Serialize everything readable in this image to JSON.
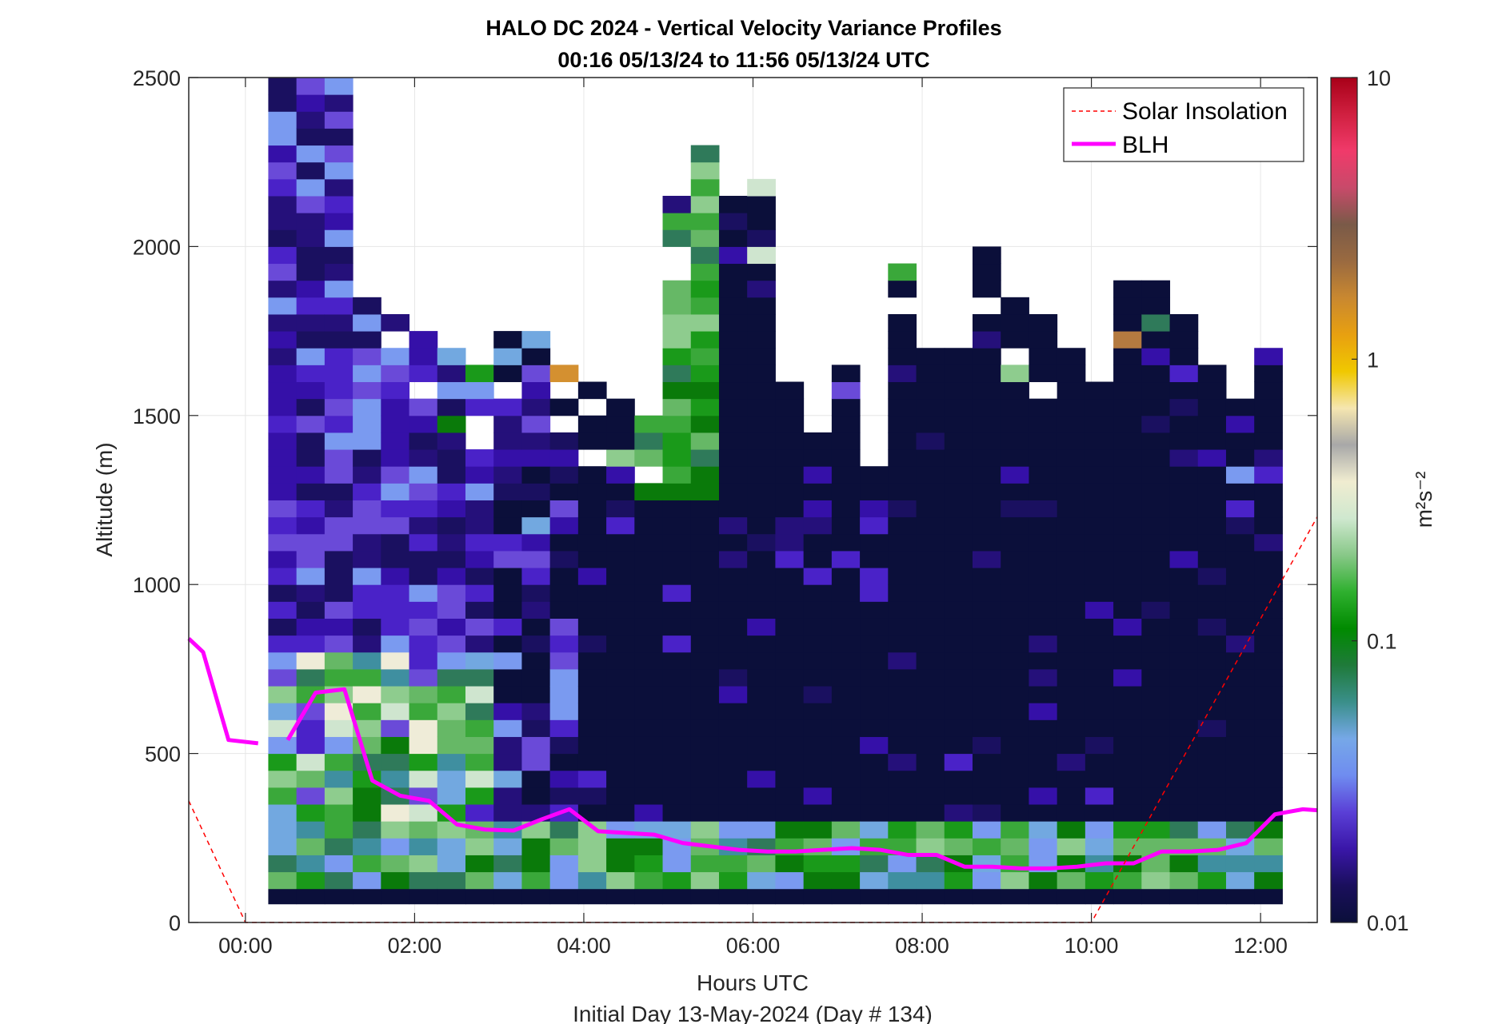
{
  "chart_data": {
    "type": "heatmap",
    "title": "HALO DC 2024 - Vertical Velocity Variance Profiles",
    "subtitle": "00:16 05/13/24 to 11:56 05/13/24  UTC",
    "xlabel": "Hours UTC",
    "xlabel2": "Initial Day 13-May-2024 (Day # 134)",
    "ylabel": "Altitude (m)",
    "colorbar_label": "m²s⁻²",
    "x_ticks": [
      "00:00",
      "02:00",
      "04:00",
      "06:00",
      "08:00",
      "10:00",
      "12:00"
    ],
    "x_tick_hours": [
      0,
      2,
      4,
      6,
      8,
      10,
      12
    ],
    "xlim_hours": [
      -0.67,
      12.67
    ],
    "y_ticks": [
      "0",
      "500",
      "1000",
      "1500",
      "2000",
      "2500"
    ],
    "y_tick_values": [
      0,
      500,
      1000,
      1500,
      2000,
      2500
    ],
    "ylim": [
      0,
      2500
    ],
    "colorbar_ticks": [
      "0.01",
      "0.1",
      "1",
      "10"
    ],
    "colorbar_tick_values": [
      0.01,
      0.1,
      1,
      10
    ],
    "colorbar_scale": "log",
    "colorbar_stops": [
      "#0b0f3a",
      "#1a0f5c",
      "#3a16a8",
      "#5a3fd6",
      "#6f8cf0",
      "#76a8e8",
      "#3a8f8a",
      "#1f7a3a",
      "#008a00",
      "#2fb02f",
      "#88c888",
      "#cfe8cf",
      "#f0ecd0",
      "#a8a8a8",
      "#f5e6b0",
      "#f0c800",
      "#e8a010",
      "#c98830",
      "#9a6a40",
      "#7a5a48",
      "#c84a6a",
      "#f03a6a",
      "#d02040",
      "#a80018"
    ],
    "heatmap_palette": [
      "#0b0f3a",
      "#1a1060",
      "#25107a",
      "#3510a8",
      "#4a22c8",
      "#6a4ad8",
      "#7a9af0",
      "#72a8e0",
      "#3f8fa0",
      "#2f7a5a",
      "#0a7a0a",
      "#1a9a1a",
      "#3aa83a",
      "#66b866",
      "#8ecc8e",
      "#cfe5cf",
      "#efecd8",
      "#f2dc70",
      "#f0c000",
      "#d49030",
      "#b47a40"
    ],
    "grid": true,
    "legend": {
      "placement": "top-right",
      "entries": [
        {
          "name": "Solar Insolation",
          "color": "#ff0000",
          "style": "dashed"
        },
        {
          "name": "BLH",
          "color": "#ff00ff",
          "style": "solid"
        }
      ]
    },
    "series": [
      {
        "name": "BLH",
        "color": "#ff00ff",
        "segments": [
          [
            [
              -0.67,
              840
            ],
            [
              -0.5,
              800
            ],
            [
              -0.2,
              540
            ],
            [
              0.15,
              530
            ]
          ],
          [
            [
              0.5,
              540
            ],
            [
              0.83,
              680
            ],
            [
              1.17,
              690
            ],
            [
              1.5,
              420
            ],
            [
              1.83,
              375
            ],
            [
              2.17,
              360
            ],
            [
              2.5,
              290
            ],
            [
              2.83,
              275
            ],
            [
              3.17,
              272
            ],
            [
              3.5,
              305
            ],
            [
              3.83,
              335
            ],
            [
              4.17,
              270
            ],
            [
              4.5,
              265
            ],
            [
              4.83,
              260
            ],
            [
              5.17,
              235
            ],
            [
              5.5,
              225
            ],
            [
              5.83,
              215
            ],
            [
              6.17,
              210
            ],
            [
              6.5,
              210
            ],
            [
              6.83,
              215
            ],
            [
              7.17,
              220
            ],
            [
              7.5,
              215
            ],
            [
              7.83,
              200
            ],
            [
              8.17,
              200
            ],
            [
              8.5,
              165
            ],
            [
              8.83,
              165
            ],
            [
              9.17,
              160
            ],
            [
              9.5,
              160
            ],
            [
              9.83,
              165
            ],
            [
              10.17,
              175
            ],
            [
              10.5,
              175
            ],
            [
              10.83,
              210
            ],
            [
              11.17,
              210
            ],
            [
              11.5,
              215
            ],
            [
              11.83,
              235
            ],
            [
              12.17,
              320
            ],
            [
              12.5,
              335
            ],
            [
              12.67,
              332
            ]
          ]
        ]
      },
      {
        "name": "Solar Insolation",
        "color": "#ff0000",
        "points": [
          [
            -0.67,
            360
          ],
          [
            0.0,
            0
          ],
          [
            10.0,
            0
          ],
          [
            12.67,
            1200
          ]
        ]
      }
    ],
    "heatmap": {
      "x_start_hours": 0.27,
      "x_step_hours": 0.333,
      "n_columns": 36,
      "y_bottom_m": 100,
      "y_step_m": 50,
      "n_rows": 48,
      "profile_tops_m": [
        2500,
        2500,
        2500,
        1850,
        1800,
        1750,
        1700,
        1650,
        1800,
        1750,
        1650,
        1600,
        1550,
        1500,
        2150,
        2300,
        2150,
        2200,
        1600,
        1450,
        1650,
        1350,
        2050,
        1700,
        1700,
        2000,
        1850,
        1800,
        1700,
        1650,
        1900,
        2000,
        1850,
        1700,
        1550,
        1700
      ],
      "value_scale": "log10 of variance, 0 = 0.01 m2s-2, 1 = 0.1, 2 = 1, 3 = 10"
    }
  }
}
